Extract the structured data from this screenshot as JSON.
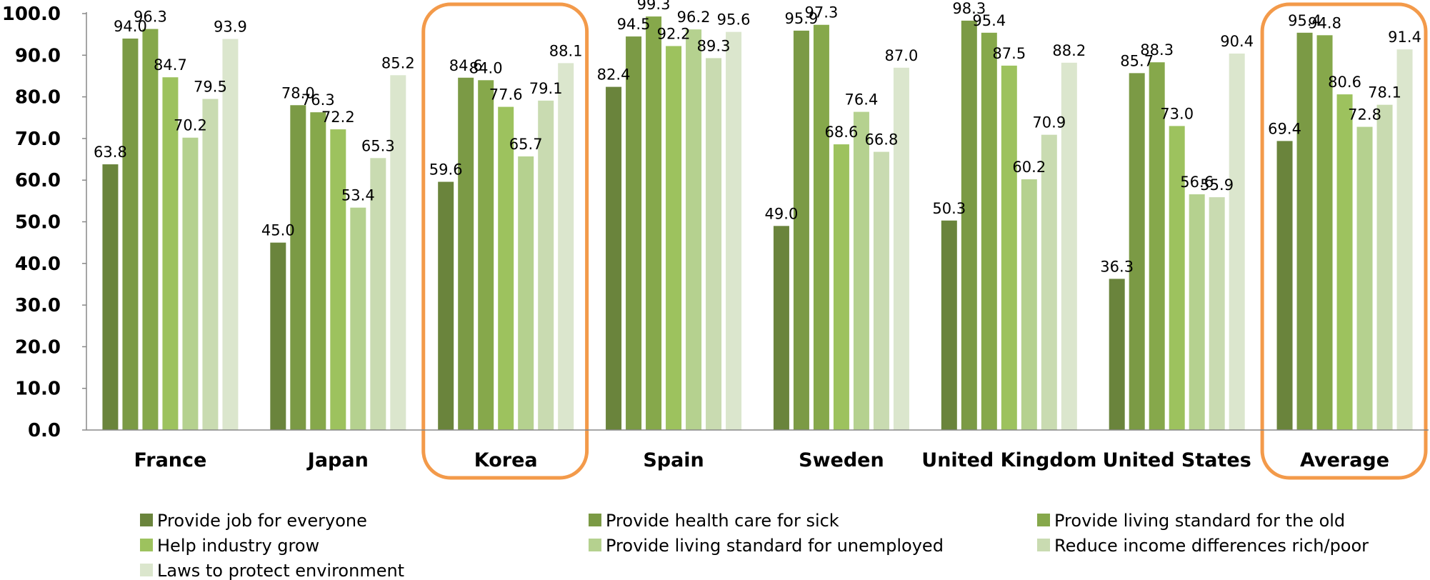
{
  "chart_data": {
    "type": "bar",
    "ylim": [
      0,
      100
    ],
    "yticks": [
      "0.0",
      "10.0",
      "20.0",
      "30.0",
      "40.0",
      "50.0",
      "60.0",
      "70.0",
      "80.0",
      "90.0",
      "100.0"
    ],
    "categories": [
      "France",
      "Japan",
      "Korea",
      "Spain",
      "Sweden",
      "United Kingdom",
      "United States",
      "Average"
    ],
    "highlighted_categories": [
      "Korea",
      "Average"
    ],
    "highlight_color": "#f39a4a",
    "legend_position": "bottom",
    "grid": false,
    "series": [
      {
        "name": "Provide job for everyone",
        "color": "#6a843c",
        "values": [
          63.8,
          45.0,
          59.6,
          82.4,
          49.0,
          50.3,
          36.3,
          69.4
        ]
      },
      {
        "name": "Provide health care for sick",
        "color": "#7b9a45",
        "values": [
          94.0,
          78.0,
          84.6,
          94.5,
          95.9,
          98.3,
          85.7,
          95.4
        ]
      },
      {
        "name": "Provide living standard for the old",
        "color": "#86a84b",
        "values": [
          96.3,
          76.3,
          84.0,
          99.3,
          97.3,
          95.4,
          88.3,
          94.8
        ]
      },
      {
        "name": "Help industry grow",
        "color": "#9dc25e",
        "values": [
          84.7,
          72.2,
          77.6,
          92.2,
          68.6,
          87.5,
          73.0,
          80.6
        ]
      },
      {
        "name": "Provide living standard for unemployed",
        "color": "#b5d18f",
        "values": [
          70.2,
          53.4,
          65.7,
          96.2,
          76.4,
          60.2,
          56.6,
          72.8
        ]
      },
      {
        "name": "Reduce income differences rich/poor",
        "color": "#c9dbb1",
        "values": [
          79.5,
          65.3,
          79.1,
          89.3,
          66.8,
          70.9,
          55.9,
          78.1
        ]
      },
      {
        "name": "Laws to protect environment",
        "color": "#dbe6cd",
        "values": [
          93.9,
          85.2,
          88.1,
          95.6,
          87.0,
          88.2,
          90.4,
          91.4
        ]
      }
    ]
  }
}
